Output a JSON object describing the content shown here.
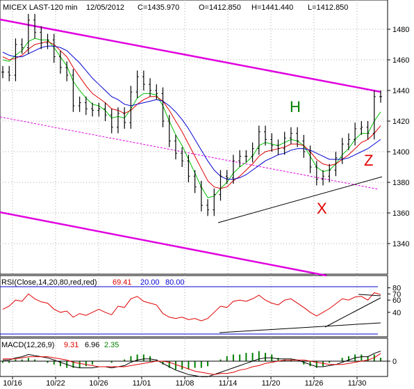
{
  "header": {
    "symbol": "MICEX LAST-120 min",
    "date": "12/05/2012",
    "close": "C=1435.970",
    "open": "O=1412.850",
    "high": "H=1441.440",
    "low": "L=1412.850"
  },
  "annotations": {
    "h": "H",
    "x": "X",
    "z": "Z"
  },
  "colors": {
    "price": "#000000",
    "ma_fast": "#00c000",
    "ma_mid": "#e00000",
    "ma_slow": "#0000d0",
    "channel": "#e000e0",
    "annotation_h": "#008000",
    "annotation_xz": "#e00000",
    "rsi": "#e00000",
    "macd": "#000000",
    "signal": "#e00000",
    "hist": "#008000"
  },
  "rsi": {
    "label": "RSI(Close,14,20,80,red,red)",
    "value": "69.41",
    "lower": "20.00",
    "upper": "80.00"
  },
  "macd": {
    "label": "MACD(12,26,9)",
    "macd": "9.31",
    "signal": "6.96",
    "hist": "2.35"
  },
  "chart_data": {
    "type": "line",
    "title": "MICEX LAST-120 min",
    "price_ylim": [
      1320,
      1490
    ],
    "price_ticks": [
      "1340",
      "1360",
      "1380",
      "1400",
      "1420",
      "1440",
      "1460",
      "1480"
    ],
    "x_ticks": [
      "10/16",
      "10/22",
      "10/26",
      "11/01",
      "11/08",
      "11/14",
      "11/20",
      "11/26",
      "11/30"
    ],
    "rsi_ticks": [
      "40",
      "60",
      "70",
      "80"
    ],
    "macd_ticks": [
      "0"
    ],
    "price_points": [
      1452,
      1450,
      1470,
      1468,
      1486,
      1478,
      1471,
      1473,
      1462,
      1455,
      1450,
      1430,
      1432,
      1428,
      1427,
      1428,
      1424,
      1416,
      1425,
      1419,
      1439,
      1449,
      1444,
      1440,
      1438,
      1420,
      1407,
      1399,
      1394,
      1384,
      1377,
      1365,
      1362,
      1372,
      1384,
      1383,
      1394,
      1397,
      1397,
      1402,
      1413,
      1408,
      1404,
      1402,
      1409,
      1412,
      1407,
      1400,
      1390,
      1382,
      1384,
      1388,
      1396,
      1405,
      1408,
      1415,
      1416,
      1412,
      1436,
      1436
    ],
    "series": [
      {
        "name": "",
        "values": [
          1460,
          1459,
          1463,
          1466,
          1472,
          1474,
          1473,
          1473,
          1468,
          1462,
          1456,
          1446,
          1440,
          1435,
          1431,
          1430,
          1427,
          1422,
          1423,
          1422,
          1428,
          1435,
          1438,
          1438,
          1437,
          1430,
          1420,
          1411,
          1404,
          1395,
          1386,
          1377,
          1370,
          1371,
          1376,
          1380,
          1386,
          1390,
          1393,
          1397,
          1404,
          1406,
          1405,
          1404,
          1406,
          1408,
          1407,
          1404,
          1397,
          1390,
          1387,
          1388,
          1392,
          1398,
          1402,
          1408,
          1412,
          1412,
          1420,
          1426
        ]
      },
      {
        "name": "",
        "values": [
          1462,
          1460,
          1461,
          1463,
          1467,
          1470,
          1471,
          1472,
          1470,
          1466,
          1462,
          1455,
          1449,
          1443,
          1438,
          1435,
          1432,
          1428,
          1427,
          1425,
          1427,
          1431,
          1434,
          1436,
          1436,
          1433,
          1427,
          1420,
          1413,
          1405,
          1397,
          1389,
          1381,
          1377,
          1376,
          1377,
          1381,
          1384,
          1388,
          1392,
          1397,
          1400,
          1401,
          1402,
          1403,
          1405,
          1405,
          1404,
          1400,
          1395,
          1392,
          1391,
          1392,
          1395,
          1398,
          1402,
          1406,
          1408,
          1412,
          1417
        ]
      },
      {
        "name": "",
        "values": [
          1465,
          1463,
          1462,
          1462,
          1464,
          1466,
          1468,
          1469,
          1469,
          1468,
          1466,
          1462,
          1458,
          1453,
          1448,
          1444,
          1440,
          1436,
          1434,
          1431,
          1430,
          1431,
          1432,
          1433,
          1434,
          1433,
          1430,
          1426,
          1421,
          1415,
          1408,
          1401,
          1394,
          1388,
          1384,
          1382,
          1382,
          1383,
          1385,
          1388,
          1391,
          1394,
          1396,
          1398,
          1399,
          1401,
          1402,
          1402,
          1401,
          1399,
          1397,
          1395,
          1395,
          1395,
          1396,
          1398,
          1400,
          1402,
          1405,
          1408
        ]
      }
    ],
    "rsi_points": [
      45,
      50,
      60,
      58,
      70,
      62,
      57,
      55,
      45,
      40,
      42,
      32,
      38,
      35,
      40,
      45,
      40,
      36,
      50,
      48,
      62,
      66,
      58,
      55,
      52,
      38,
      32,
      30,
      32,
      28,
      30,
      26,
      30,
      40,
      50,
      48,
      58,
      60,
      58,
      62,
      68,
      60,
      55,
      52,
      60,
      62,
      55,
      48,
      40,
      34,
      40,
      46,
      54,
      62,
      60,
      65,
      66,
      60,
      72,
      69
    ],
    "macd_points": [
      1,
      1,
      3,
      4,
      6,
      5,
      4,
      3,
      1,
      -1,
      -3,
      -5,
      -6,
      -6,
      -6,
      -5,
      -5,
      -6,
      -5,
      -4,
      -1,
      1,
      2,
      2,
      1,
      -2,
      -5,
      -8,
      -10,
      -12,
      -13,
      -14,
      -14,
      -12,
      -10,
      -8,
      -6,
      -4,
      -2,
      0,
      2,
      3,
      3,
      2,
      2,
      2,
      1,
      -1,
      -3,
      -5,
      -5,
      -4,
      -3,
      -1,
      1,
      3,
      4,
      4,
      7,
      9
    ],
    "signal_points": [
      2,
      2,
      2,
      3,
      4,
      4,
      4,
      4,
      3,
      2,
      1,
      -1,
      -2,
      -3,
      -4,
      -5,
      -5,
      -5,
      -5,
      -5,
      -4,
      -3,
      -2,
      -1,
      0,
      0,
      -1,
      -3,
      -5,
      -7,
      -9,
      -10,
      -11,
      -12,
      -11,
      -11,
      -10,
      -8,
      -7,
      -5,
      -4,
      -2,
      -1,
      0,
      1,
      1,
      1,
      1,
      0,
      -1,
      -2,
      -3,
      -3,
      -3,
      -2,
      -1,
      0,
      1,
      3,
      7
    ]
  }
}
